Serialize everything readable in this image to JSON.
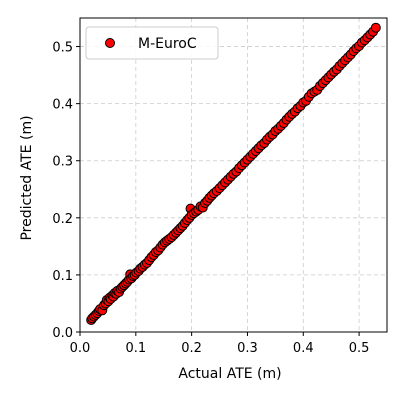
{
  "chart_data": {
    "type": "scatter",
    "title": "",
    "xlabel": "Actual ATE (m)",
    "ylabel": "Predicted ATE (m)",
    "xlim": [
      0.0,
      0.55
    ],
    "ylim": [
      0.0,
      0.55
    ],
    "xticks": [
      0.0,
      0.1,
      0.2,
      0.3,
      0.4,
      0.5
    ],
    "yticks": [
      0.0,
      0.1,
      0.2,
      0.3,
      0.4,
      0.5
    ],
    "xtick_labels": [
      "0.0",
      "0.1",
      "0.2",
      "0.3",
      "0.4",
      "0.5"
    ],
    "ytick_labels": [
      "0.0",
      "0.1",
      "0.2",
      "0.3",
      "0.4",
      "0.5"
    ],
    "grid": true,
    "legend_position": "top-left",
    "series": [
      {
        "name": "M-EuroC",
        "color": "#ff0000",
        "edge_color": "#000000",
        "points": [
          [
            0.02,
            0.021
          ],
          [
            0.022,
            0.024
          ],
          [
            0.025,
            0.027
          ],
          [
            0.028,
            0.03
          ],
          [
            0.031,
            0.033
          ],
          [
            0.034,
            0.037
          ],
          [
            0.036,
            0.04
          ],
          [
            0.04,
            0.038
          ],
          [
            0.043,
            0.047
          ],
          [
            0.046,
            0.05
          ],
          [
            0.048,
            0.056
          ],
          [
            0.051,
            0.054
          ],
          [
            0.053,
            0.06
          ],
          [
            0.055,
            0.058
          ],
          [
            0.058,
            0.064
          ],
          [
            0.06,
            0.062
          ],
          [
            0.062,
            0.068
          ],
          [
            0.065,
            0.067
          ],
          [
            0.067,
            0.072
          ],
          [
            0.07,
            0.07
          ],
          [
            0.073,
            0.076
          ],
          [
            0.076,
            0.079
          ],
          [
            0.079,
            0.082
          ],
          [
            0.082,
            0.085
          ],
          [
            0.085,
            0.088
          ],
          [
            0.088,
            0.092
          ],
          [
            0.09,
            0.101
          ],
          [
            0.092,
            0.094
          ],
          [
            0.095,
            0.098
          ],
          [
            0.098,
            0.1
          ],
          [
            0.101,
            0.104
          ],
          [
            0.105,
            0.107
          ],
          [
            0.108,
            0.111
          ],
          [
            0.112,
            0.114
          ],
          [
            0.116,
            0.118
          ],
          [
            0.12,
            0.121
          ],
          [
            0.124,
            0.126
          ],
          [
            0.128,
            0.131
          ],
          [
            0.132,
            0.135
          ],
          [
            0.136,
            0.14
          ],
          [
            0.14,
            0.143
          ],
          [
            0.144,
            0.148
          ],
          [
            0.148,
            0.153
          ],
          [
            0.152,
            0.157
          ],
          [
            0.156,
            0.16
          ],
          [
            0.16,
            0.163
          ],
          [
            0.164,
            0.166
          ],
          [
            0.168,
            0.17
          ],
          [
            0.172,
            0.174
          ],
          [
            0.176,
            0.178
          ],
          [
            0.18,
            0.182
          ],
          [
            0.184,
            0.186
          ],
          [
            0.188,
            0.191
          ],
          [
            0.192,
            0.196
          ],
          [
            0.196,
            0.2
          ],
          [
            0.198,
            0.216
          ],
          [
            0.2,
            0.205
          ],
          [
            0.204,
            0.208
          ],
          [
            0.208,
            0.211
          ],
          [
            0.212,
            0.214
          ],
          [
            0.216,
            0.22
          ],
          [
            0.22,
            0.218
          ],
          [
            0.224,
            0.226
          ],
          [
            0.228,
            0.23
          ],
          [
            0.232,
            0.235
          ],
          [
            0.236,
            0.239
          ],
          [
            0.24,
            0.243
          ],
          [
            0.245,
            0.247
          ],
          [
            0.25,
            0.252
          ],
          [
            0.255,
            0.257
          ],
          [
            0.26,
            0.262
          ],
          [
            0.265,
            0.267
          ],
          [
            0.27,
            0.272
          ],
          [
            0.275,
            0.277
          ],
          [
            0.28,
            0.281
          ],
          [
            0.285,
            0.287
          ],
          [
            0.29,
            0.292
          ],
          [
            0.295,
            0.297
          ],
          [
            0.3,
            0.302
          ],
          [
            0.305,
            0.307
          ],
          [
            0.31,
            0.312
          ],
          [
            0.315,
            0.317
          ],
          [
            0.32,
            0.322
          ],
          [
            0.325,
            0.327
          ],
          [
            0.33,
            0.331
          ],
          [
            0.335,
            0.337
          ],
          [
            0.34,
            0.342
          ],
          [
            0.345,
            0.346
          ],
          [
            0.35,
            0.352
          ],
          [
            0.355,
            0.356
          ],
          [
            0.36,
            0.361
          ],
          [
            0.365,
            0.366
          ],
          [
            0.37,
            0.372
          ],
          [
            0.375,
            0.377
          ],
          [
            0.38,
            0.382
          ],
          [
            0.385,
            0.386
          ],
          [
            0.39,
            0.392
          ],
          [
            0.395,
            0.396
          ],
          [
            0.4,
            0.402
          ],
          [
            0.405,
            0.405
          ],
          [
            0.41,
            0.412
          ],
          [
            0.415,
            0.418
          ],
          [
            0.42,
            0.421
          ],
          [
            0.425,
            0.424
          ],
          [
            0.43,
            0.431
          ],
          [
            0.435,
            0.436
          ],
          [
            0.44,
            0.441
          ],
          [
            0.445,
            0.446
          ],
          [
            0.45,
            0.451
          ],
          [
            0.455,
            0.456
          ],
          [
            0.46,
            0.46
          ],
          [
            0.465,
            0.466
          ],
          [
            0.47,
            0.471
          ],
          [
            0.475,
            0.476
          ],
          [
            0.48,
            0.481
          ],
          [
            0.485,
            0.486
          ],
          [
            0.49,
            0.492
          ],
          [
            0.495,
            0.497
          ],
          [
            0.5,
            0.501
          ],
          [
            0.505,
            0.507
          ],
          [
            0.51,
            0.511
          ],
          [
            0.515,
            0.516
          ],
          [
            0.52,
            0.521
          ],
          [
            0.525,
            0.526
          ],
          [
            0.53,
            0.533
          ]
        ]
      }
    ]
  }
}
